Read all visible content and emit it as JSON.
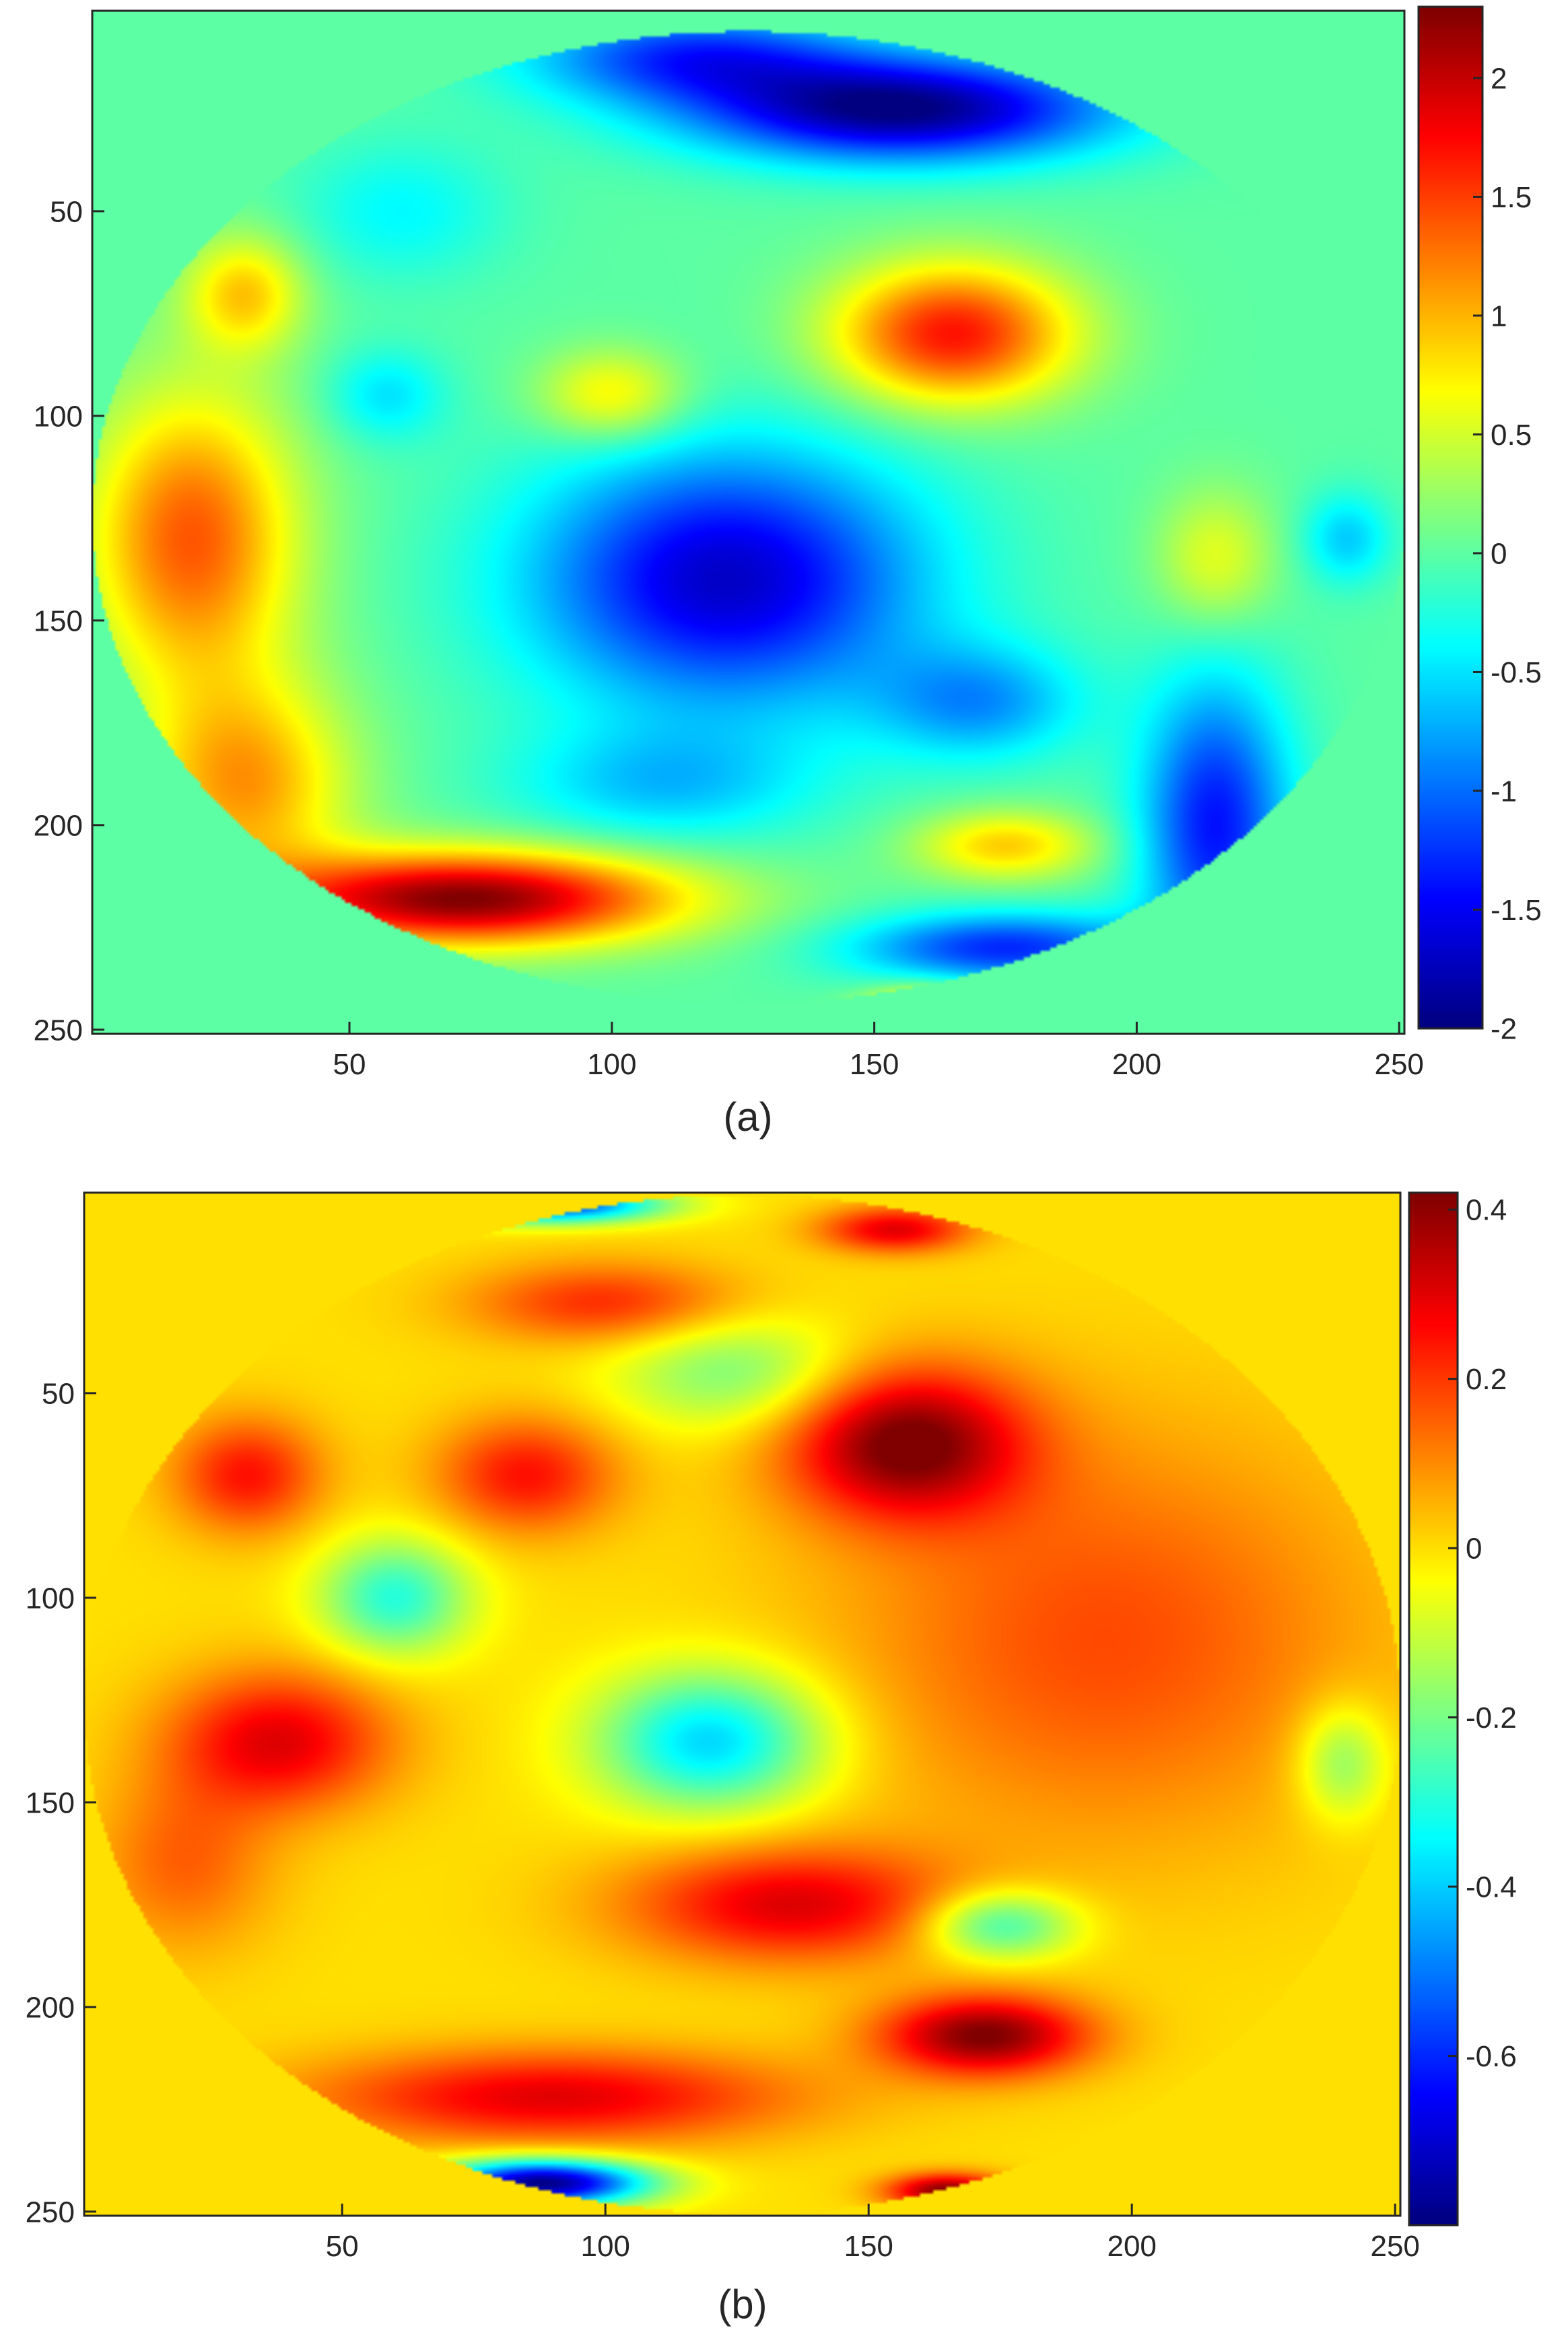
{
  "chart_data": [
    {
      "type": "heatmap",
      "panel_label": "(a)",
      "colormap": "jet",
      "background_value": 0,
      "x_ticks": [
        50,
        100,
        150,
        200,
        250
      ],
      "y_ticks": [
        50,
        100,
        150,
        200,
        250
      ],
      "xlim": [
        1,
        251
      ],
      "ylim": [
        1,
        251
      ],
      "y_direction": "reversed",
      "colorbar": {
        "ticks": [
          2,
          1.5,
          1,
          0.5,
          0,
          -0.5,
          -1,
          -1.5,
          -2
        ],
        "tick_labels": [
          "2",
          "1.5",
          "1",
          "0.5",
          "0",
          "-0.5",
          "-1",
          "-1.5",
          "-2"
        ],
        "range": [
          -2,
          2.3
        ]
      },
      "blobs": [
        {
          "x": 155,
          "y": 25,
          "sx": 28,
          "sy": 9,
          "value": -2.0
        },
        {
          "x": 115,
          "y": 12,
          "sx": 22,
          "sy": 8,
          "value": -1.2
        },
        {
          "x": 122,
          "y": 140,
          "sx": 26,
          "sy": 22,
          "value": -1.7
        },
        {
          "x": 165,
          "y": 80,
          "sx": 16,
          "sy": 12,
          "value": 1.7
        },
        {
          "x": 72,
          "y": 218,
          "sx": 28,
          "sy": 8,
          "value": 2.3
        },
        {
          "x": 20,
          "y": 130,
          "sx": 14,
          "sy": 25,
          "value": 1.4
        },
        {
          "x": 30,
          "y": 190,
          "sx": 14,
          "sy": 18,
          "value": 1.1
        },
        {
          "x": 215,
          "y": 200,
          "sx": 10,
          "sy": 25,
          "value": -1.4
        },
        {
          "x": 175,
          "y": 230,
          "sx": 20,
          "sy": 6,
          "value": -1.3
        },
        {
          "x": 57,
          "y": 95,
          "sx": 8,
          "sy": 8,
          "value": -0.5
        },
        {
          "x": 175,
          "y": 205,
          "sx": 12,
          "sy": 6,
          "value": 0.9
        },
        {
          "x": 100,
          "y": 95,
          "sx": 10,
          "sy": 8,
          "value": 0.8
        },
        {
          "x": 215,
          "y": 135,
          "sx": 8,
          "sy": 12,
          "value": 0.6
        },
        {
          "x": 30,
          "y": 70,
          "sx": 8,
          "sy": 10,
          "value": 0.9
        },
        {
          "x": 170,
          "y": 170,
          "sx": 14,
          "sy": 10,
          "value": -0.8
        },
        {
          "x": 60,
          "y": 50,
          "sx": 14,
          "sy": 12,
          "value": -0.4
        },
        {
          "x": 240,
          "y": 130,
          "sx": 6,
          "sy": 8,
          "value": -0.6
        },
        {
          "x": 110,
          "y": 190,
          "sx": 20,
          "sy": 10,
          "value": -0.6
        },
        {
          "x": 160,
          "y": 245,
          "sx": 8,
          "sy": 4,
          "value": 1.2
        }
      ]
    },
    {
      "type": "heatmap",
      "panel_label": "(b)",
      "colormap": "jet",
      "background_value": 0,
      "x_ticks": [
        50,
        100,
        150,
        200,
        250
      ],
      "y_ticks": [
        50,
        100,
        150,
        200,
        250
      ],
      "xlim": [
        1,
        251
      ],
      "ylim": [
        1,
        251
      ],
      "y_direction": "reversed",
      "colorbar": {
        "ticks": [
          0.4,
          0.2,
          0,
          -0.2,
          -0.4,
          -0.6
        ],
        "tick_labels": [
          "0.4",
          "0.2",
          "0",
          "-0.2",
          "-0.4",
          "-0.6"
        ],
        "range": [
          -0.8,
          0.42
        ]
      },
      "blobs": [
        {
          "x": 157,
          "y": 62,
          "sx": 16,
          "sy": 13,
          "value": 0.42
        },
        {
          "x": 172,
          "y": 207,
          "sx": 14,
          "sy": 7,
          "value": 0.42
        },
        {
          "x": 195,
          "y": 110,
          "sx": 35,
          "sy": 35,
          "value": 0.18
        },
        {
          "x": 38,
          "y": 135,
          "sx": 15,
          "sy": 12,
          "value": 0.3
        },
        {
          "x": 32,
          "y": 70,
          "sx": 10,
          "sy": 10,
          "value": 0.25
        },
        {
          "x": 85,
          "y": 70,
          "sx": 12,
          "sy": 10,
          "value": 0.25
        },
        {
          "x": 135,
          "y": 175,
          "sx": 22,
          "sy": 10,
          "value": 0.3
        },
        {
          "x": 90,
          "y": 222,
          "sx": 32,
          "sy": 8,
          "value": 0.3
        },
        {
          "x": 100,
          "y": 28,
          "sx": 18,
          "sy": 7,
          "value": 0.22
        },
        {
          "x": 120,
          "y": 135,
          "sx": 15,
          "sy": 12,
          "value": -0.4
        },
        {
          "x": 60,
          "y": 100,
          "sx": 10,
          "sy": 10,
          "value": -0.3
        },
        {
          "x": 175,
          "y": 180,
          "sx": 10,
          "sy": 6,
          "value": -0.3
        },
        {
          "x": 88,
          "y": 243,
          "sx": 14,
          "sy": 4,
          "value": -0.8
        },
        {
          "x": 90,
          "y": 4,
          "sx": 14,
          "sy": 3,
          "value": -0.6
        },
        {
          "x": 125,
          "y": 45,
          "sx": 16,
          "sy": 10,
          "value": -0.2
        },
        {
          "x": 165,
          "y": 245,
          "sx": 8,
          "sy": 3,
          "value": 0.42
        },
        {
          "x": 155,
          "y": 10,
          "sx": 10,
          "sy": 4,
          "value": 0.3
        },
        {
          "x": 240,
          "y": 140,
          "sx": 6,
          "sy": 10,
          "value": -0.2
        },
        {
          "x": 20,
          "y": 165,
          "sx": 12,
          "sy": 15,
          "value": 0.15
        }
      ]
    }
  ]
}
